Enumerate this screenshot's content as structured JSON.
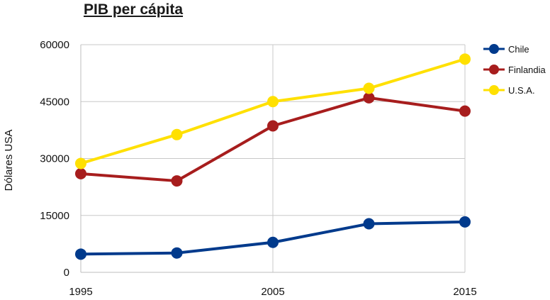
{
  "chart_data": {
    "type": "line",
    "title": "PIB per cápita",
    "ylabel": "Dólares USA",
    "xlabel": "",
    "x": [
      1995,
      2000,
      2005,
      2010,
      2015
    ],
    "x_ticks": [
      1995,
      2005,
      2015
    ],
    "xlim": [
      1995,
      2015
    ],
    "y_ticks": [
      0,
      15000,
      30000,
      45000,
      60000
    ],
    "ylim": [
      0,
      60000
    ],
    "grid": "both",
    "legend_position": "right",
    "series": [
      {
        "name": "Chile",
        "color": "#003a8c",
        "values": [
          4800,
          5100,
          7900,
          12800,
          13300
        ]
      },
      {
        "name": "Finlandia",
        "color": "#a71d1d",
        "values": [
          26000,
          24100,
          38600,
          46000,
          42500
        ]
      },
      {
        "name": "U.S.A.",
        "color": "#ffe000",
        "values": [
          28700,
          36300,
          45000,
          48500,
          56200
        ]
      }
    ]
  }
}
